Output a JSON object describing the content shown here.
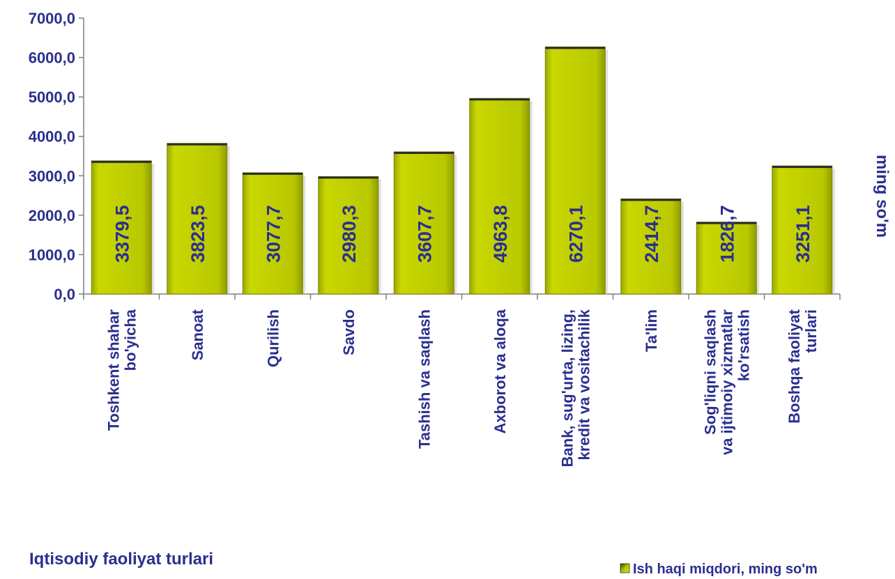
{
  "chart_data": {
    "type": "bar",
    "categories": [
      [
        "Toshkent shahar",
        "bo'yicha"
      ],
      [
        "Sanoat"
      ],
      [
        "Qurilish"
      ],
      [
        "Savdo"
      ],
      [
        "Tashish va saqlash"
      ],
      [
        "Axborot va aloqa"
      ],
      [
        "Bank, sug'urta, lizing,",
        "kredit va vositachilik"
      ],
      [
        "Ta'lim"
      ],
      [
        "Sog'liqni saqlash",
        "va ijtimoiy  xizmatlar",
        "ko'rsatish"
      ],
      [
        "Boshqa faoliyat",
        "turlari"
      ]
    ],
    "series": [
      {
        "name": "Ish haqi  miqdori, ming so'm",
        "values": [
          3379.5,
          3823.5,
          3077.7,
          2980.3,
          3607.7,
          4963.8,
          6270.1,
          2414.7,
          1826.7,
          3251.1
        ],
        "value_labels": [
          "3379,5",
          "3823,5",
          "3077,7",
          "2980,3",
          "3607,7",
          "4963,8",
          "6270,1",
          "2414,7",
          "1826,7",
          "3251,1"
        ],
        "color": "#b5c400"
      }
    ],
    "ylim": [
      0,
      7000
    ],
    "yticks": [
      0,
      1000,
      2000,
      3000,
      4000,
      5000,
      6000,
      7000
    ],
    "ytick_labels": [
      "0,0",
      "1000,0",
      "2000,0",
      "3000,0",
      "4000,0",
      "5000,0",
      "6000,0",
      "7000,0"
    ],
    "ylabel": "ming so'm",
    "xlabel": "Iqtisodiy faoliyat turlari",
    "legend_position": "bottom-right",
    "grid": false
  }
}
